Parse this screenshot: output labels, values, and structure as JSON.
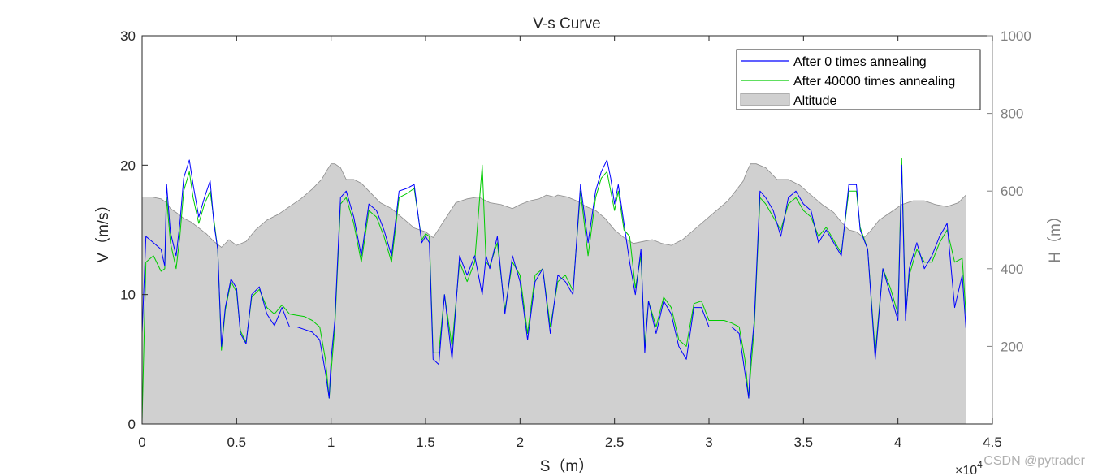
{
  "chart_data": {
    "type": "line",
    "title": "V-s Curve",
    "xlabel": "S（m）",
    "ylabel_left": "V（m/s）",
    "ylabel_right": "H（m）",
    "x_multiplier": "×10",
    "x_multiplier_exp": "4",
    "xlim": [
      0,
      4.5
    ],
    "ylim_left": [
      0,
      30
    ],
    "ylim_right": [
      0,
      1000
    ],
    "x_ticks": [
      "0",
      "0.5",
      "1",
      "1.5",
      "2",
      "2.5",
      "3",
      "3.5",
      "4",
      "4.5"
    ],
    "y_ticks_left": [
      "0",
      "10",
      "20",
      "30"
    ],
    "y_ticks_right": [
      "200",
      "400",
      "600",
      "800",
      "1000"
    ],
    "legend_position": "top-right",
    "colors": {
      "series0": "#0000ff",
      "series1": "#00cc00",
      "altitude_fill": "#d0d0d0",
      "altitude_edge": "#8c8c8c",
      "right_axis": "#808080"
    },
    "series": [
      {
        "name": "After 0 times annealing",
        "x": [
          0,
          0.02,
          0.06,
          0.1,
          0.12,
          0.13,
          0.15,
          0.18,
          0.2,
          0.22,
          0.25,
          0.27,
          0.3,
          0.33,
          0.36,
          0.38,
          0.4,
          0.42,
          0.44,
          0.47,
          0.5,
          0.52,
          0.55,
          0.58,
          0.62,
          0.66,
          0.7,
          0.74,
          0.78,
          0.82,
          0.86,
          0.9,
          0.94,
          0.97,
          0.99,
          1.0,
          1.02,
          1.05,
          1.08,
          1.12,
          1.16,
          1.2,
          1.24,
          1.28,
          1.32,
          1.36,
          1.4,
          1.44,
          1.48,
          1.5,
          1.52,
          1.54,
          1.57,
          1.6,
          1.64,
          1.68,
          1.72,
          1.76,
          1.8,
          1.82,
          1.84,
          1.88,
          1.92,
          1.96,
          2.0,
          2.04,
          2.08,
          2.12,
          2.16,
          2.2,
          2.24,
          2.28,
          2.32,
          2.36,
          2.4,
          2.43,
          2.46,
          2.48,
          2.5,
          2.52,
          2.55,
          2.58,
          2.61,
          2.64,
          2.66,
          2.68,
          2.72,
          2.76,
          2.8,
          2.84,
          2.88,
          2.92,
          2.96,
          3.0,
          3.04,
          3.08,
          3.12,
          3.16,
          3.19,
          3.21,
          3.22,
          3.24,
          3.27,
          3.3,
          3.34,
          3.38,
          3.42,
          3.46,
          3.5,
          3.54,
          3.58,
          3.62,
          3.66,
          3.7,
          3.74,
          3.78,
          3.8,
          3.84,
          3.88,
          3.92,
          3.96,
          4.0,
          4.02,
          4.04,
          4.06,
          4.1,
          4.14,
          4.18,
          4.22,
          4.26,
          4.3,
          4.34,
          4.36
        ],
        "values": [
          7.0,
          14.5,
          14.0,
          13.5,
          12.2,
          18.5,
          14.8,
          13.0,
          15.5,
          19.0,
          20.4,
          18.5,
          16.0,
          17.5,
          18.8,
          15.5,
          13.5,
          6.0,
          9.0,
          11.2,
          10.5,
          7.0,
          6.2,
          10.0,
          10.6,
          8.5,
          7.6,
          9.0,
          7.5,
          7.5,
          7.3,
          7.1,
          6.5,
          4.0,
          2.0,
          5.0,
          8.0,
          17.5,
          18.0,
          16.0,
          13.0,
          17.0,
          16.5,
          15.0,
          13.0,
          18.0,
          18.2,
          18.5,
          14.0,
          14.5,
          14.0,
          5.0,
          4.6,
          10.0,
          5.0,
          13.0,
          11.5,
          13.0,
          10.0,
          13.0,
          12.0,
          14.5,
          8.5,
          13.0,
          11.0,
          6.5,
          11.0,
          12.0,
          7.0,
          11.5,
          11.0,
          10.0,
          18.5,
          14.0,
          18.0,
          19.5,
          20.4,
          19.0,
          17.0,
          18.5,
          15.5,
          12.5,
          10.0,
          13.5,
          5.5,
          9.5,
          7.0,
          9.5,
          8.5,
          6.0,
          5.0,
          9.0,
          9.0,
          7.5,
          7.5,
          7.5,
          7.5,
          7.0,
          4.0,
          2.0,
          5.0,
          8.0,
          18.0,
          17.5,
          16.5,
          14.5,
          17.5,
          18.0,
          17.0,
          16.5,
          14.0,
          15.0,
          14.0,
          13.0,
          18.5,
          18.5,
          15.0,
          13.5,
          5.0,
          12.0,
          10.0,
          8.0,
          20.0,
          8.0,
          12.0,
          14.0,
          12.0,
          13.0,
          14.5,
          15.5,
          9.0,
          11.5,
          7.4
        ]
      },
      {
        "name": "After 40000 times annealing",
        "x": [
          0,
          0.02,
          0.06,
          0.1,
          0.12,
          0.13,
          0.15,
          0.18,
          0.2,
          0.22,
          0.25,
          0.27,
          0.3,
          0.33,
          0.36,
          0.38,
          0.4,
          0.42,
          0.44,
          0.47,
          0.5,
          0.52,
          0.55,
          0.58,
          0.62,
          0.66,
          0.7,
          0.74,
          0.78,
          0.82,
          0.86,
          0.9,
          0.94,
          0.97,
          0.99,
          1.0,
          1.02,
          1.05,
          1.08,
          1.12,
          1.16,
          1.2,
          1.24,
          1.28,
          1.32,
          1.36,
          1.4,
          1.44,
          1.48,
          1.5,
          1.52,
          1.54,
          1.57,
          1.6,
          1.64,
          1.68,
          1.72,
          1.76,
          1.8,
          1.82,
          1.84,
          1.88,
          1.92,
          1.96,
          2.0,
          2.04,
          2.08,
          2.12,
          2.16,
          2.2,
          2.24,
          2.28,
          2.32,
          2.36,
          2.4,
          2.43,
          2.46,
          2.48,
          2.5,
          2.52,
          2.55,
          2.58,
          2.61,
          2.64,
          2.66,
          2.68,
          2.72,
          2.76,
          2.8,
          2.84,
          2.88,
          2.92,
          2.96,
          3.0,
          3.04,
          3.08,
          3.12,
          3.16,
          3.19,
          3.21,
          3.22,
          3.24,
          3.27,
          3.3,
          3.34,
          3.38,
          3.42,
          3.46,
          3.5,
          3.54,
          3.58,
          3.62,
          3.66,
          3.7,
          3.74,
          3.78,
          3.8,
          3.84,
          3.88,
          3.92,
          3.96,
          4.0,
          4.02,
          4.04,
          4.06,
          4.1,
          4.14,
          4.18,
          4.22,
          4.26,
          4.3,
          4.34,
          4.36
        ],
        "values": [
          0.2,
          12.5,
          13.0,
          11.8,
          12.0,
          17.5,
          14.0,
          12.0,
          14.5,
          18.0,
          19.5,
          17.5,
          15.5,
          17.0,
          18.0,
          15.8,
          13.5,
          5.7,
          8.8,
          11.0,
          10.2,
          7.2,
          6.3,
          9.8,
          10.4,
          9.0,
          8.5,
          9.2,
          8.5,
          8.4,
          8.3,
          8.0,
          7.5,
          5.0,
          2.0,
          4.0,
          7.5,
          17.0,
          17.5,
          15.5,
          12.5,
          16.5,
          16.0,
          14.5,
          12.5,
          17.5,
          17.8,
          18.2,
          14.2,
          14.7,
          14.5,
          5.5,
          5.5,
          10.0,
          6.0,
          12.5,
          11.0,
          12.5,
          20.0,
          12.5,
          12.2,
          14.0,
          8.8,
          12.5,
          11.5,
          7.0,
          11.5,
          12.0,
          7.5,
          11.0,
          11.5,
          10.3,
          18.0,
          13.0,
          17.5,
          19.0,
          19.5,
          18.0,
          16.5,
          18.0,
          15.0,
          14.5,
          10.5,
          13.0,
          6.0,
          9.5,
          7.5,
          9.8,
          9.0,
          6.5,
          6.0,
          9.3,
          9.5,
          8.0,
          8.0,
          8.0,
          7.8,
          7.5,
          5.0,
          2.0,
          4.0,
          7.5,
          17.5,
          17.0,
          16.0,
          15.0,
          17.0,
          17.5,
          16.5,
          16.0,
          14.5,
          15.2,
          14.2,
          13.2,
          18.0,
          18.0,
          15.2,
          13.5,
          5.5,
          12.0,
          10.5,
          8.5,
          20.5,
          8.5,
          11.5,
          13.5,
          12.5,
          12.5,
          14.0,
          15.0,
          12.5,
          12.8,
          8.5
        ]
      },
      {
        "name": "Altitude",
        "x": [
          0,
          0.05,
          0.1,
          0.13,
          0.15,
          0.18,
          0.22,
          0.26,
          0.3,
          0.34,
          0.38,
          0.42,
          0.46,
          0.5,
          0.55,
          0.6,
          0.66,
          0.72,
          0.78,
          0.84,
          0.9,
          0.95,
          0.98,
          1.0,
          1.02,
          1.05,
          1.08,
          1.12,
          1.16,
          1.2,
          1.26,
          1.32,
          1.38,
          1.44,
          1.5,
          1.54,
          1.58,
          1.62,
          1.66,
          1.72,
          1.78,
          1.84,
          1.9,
          1.96,
          2.0,
          2.05,
          2.1,
          2.14,
          2.18,
          2.2,
          2.25,
          2.3,
          2.35,
          2.4,
          2.45,
          2.5,
          2.55,
          2.6,
          2.65,
          2.7,
          2.75,
          2.8,
          2.86,
          2.92,
          2.98,
          3.04,
          3.1,
          3.14,
          3.18,
          3.2,
          3.22,
          3.25,
          3.3,
          3.36,
          3.42,
          3.48,
          3.54,
          3.6,
          3.66,
          3.7,
          3.74,
          3.78,
          3.82,
          3.86,
          3.9,
          3.96,
          4.02,
          4.08,
          4.14,
          4.2,
          4.26,
          4.32,
          4.36
        ],
        "values": [
          585,
          585,
          580,
          570,
          555,
          545,
          530,
          520,
          505,
          490,
          470,
          455,
          475,
          460,
          470,
          500,
          525,
          540,
          560,
          580,
          605,
          630,
          655,
          670,
          670,
          660,
          630,
          630,
          620,
          600,
          570,
          555,
          530,
          505,
          495,
          480,
          510,
          540,
          570,
          580,
          585,
          570,
          565,
          555,
          565,
          575,
          580,
          590,
          585,
          590,
          585,
          575,
          560,
          550,
          530,
          500,
          480,
          465,
          470,
          475,
          465,
          460,
          475,
          500,
          525,
          550,
          575,
          600,
          625,
          650,
          670,
          670,
          660,
          630,
          630,
          615,
          590,
          565,
          545,
          520,
          500,
          495,
          480,
          500,
          525,
          545,
          565,
          575,
          575,
          565,
          560,
          570,
          590
        ]
      }
    ]
  },
  "watermark": "CSDN @pytrader"
}
